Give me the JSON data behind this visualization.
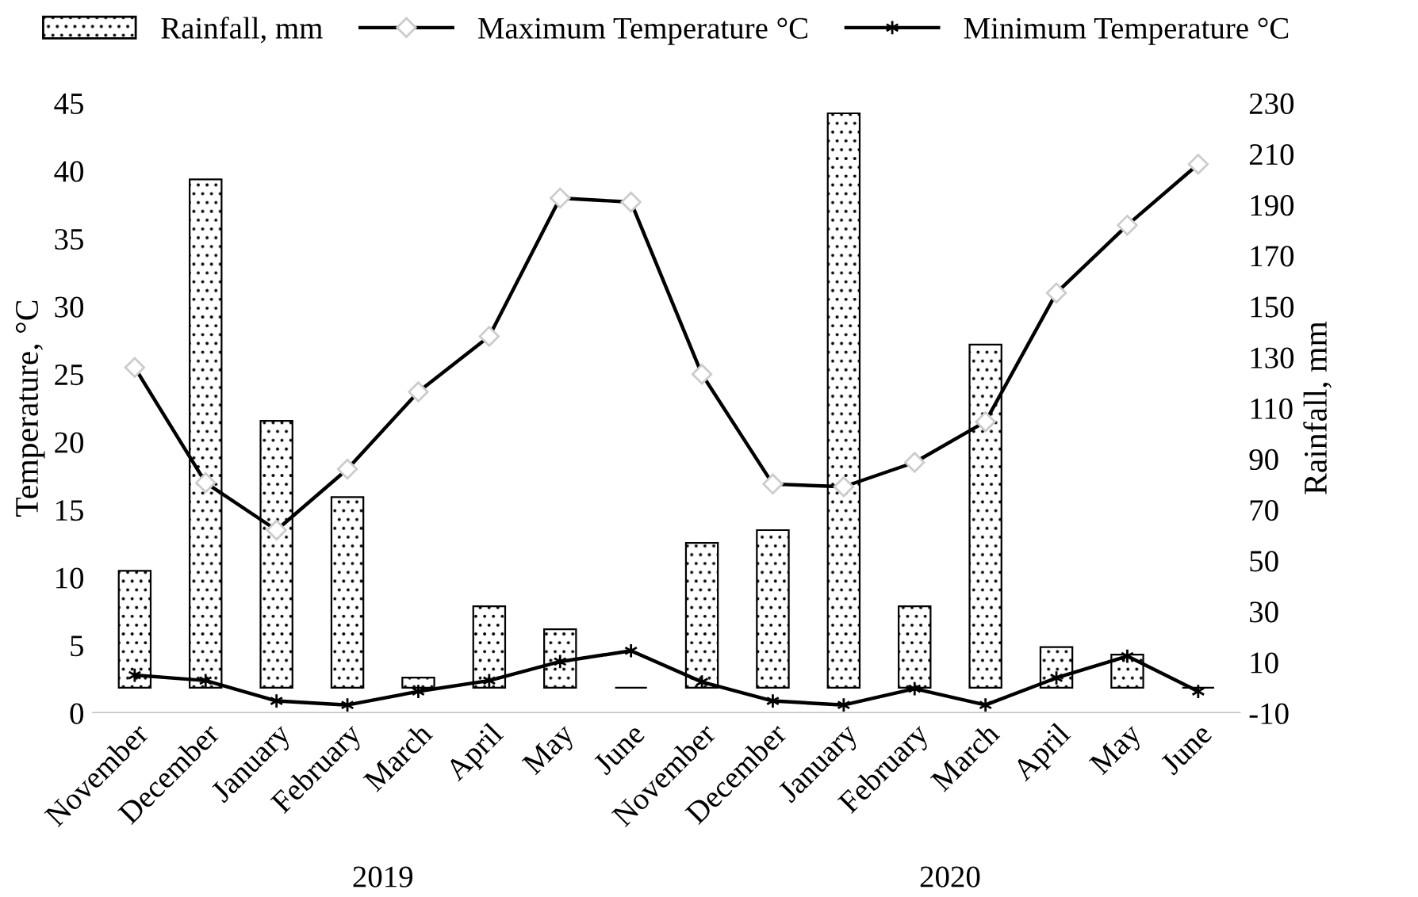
{
  "chart_data": {
    "type": "bar",
    "ylabel": "Temperature, °C",
    "y2label": "Rainfall, mm",
    "categories": [
      "November",
      "December",
      "January",
      "February",
      "March",
      "April",
      "May",
      "June",
      "November",
      "December",
      "January",
      "February",
      "March",
      "April",
      "May",
      "June"
    ],
    "series": [
      {
        "name": "Rainfall, mm",
        "axis": "y2",
        "color": "#000000",
        "values": [
          46,
          200,
          105,
          75,
          4,
          32,
          23,
          0,
          57,
          62,
          226,
          32,
          135,
          16,
          13,
          0
        ]
      },
      {
        "name": "Maximum Temperature °C",
        "type": "line",
        "color": "#000000",
        "marker": "diamond",
        "values": [
          25.5,
          17,
          13.5,
          18,
          23.7,
          27.8,
          38,
          37.7,
          25,
          16.9,
          16.7,
          18.5,
          21.5,
          31,
          36,
          40.5
        ]
      },
      {
        "name": "Minimum Temperature °C",
        "type": "line",
        "color": "#000000",
        "marker": "cross",
        "values": [
          2.8,
          2.4,
          0.9,
          0.6,
          1.6,
          2.4,
          3.8,
          4.6,
          2.3,
          0.9,
          0.6,
          1.8,
          0.6,
          2.6,
          4.2,
          1.6
        ]
      }
    ],
    "ylim": [
      0,
      45
    ],
    "yticks": [
      0,
      5,
      10,
      15,
      20,
      25,
      30,
      35,
      40,
      45
    ],
    "y2lim": [
      -10,
      230
    ],
    "y2ticks": [
      -10,
      10,
      30,
      50,
      70,
      90,
      110,
      130,
      150,
      170,
      190,
      210,
      230
    ],
    "annotations": [
      "2019",
      "2020"
    ],
    "legend": "top",
    "grid": false
  }
}
